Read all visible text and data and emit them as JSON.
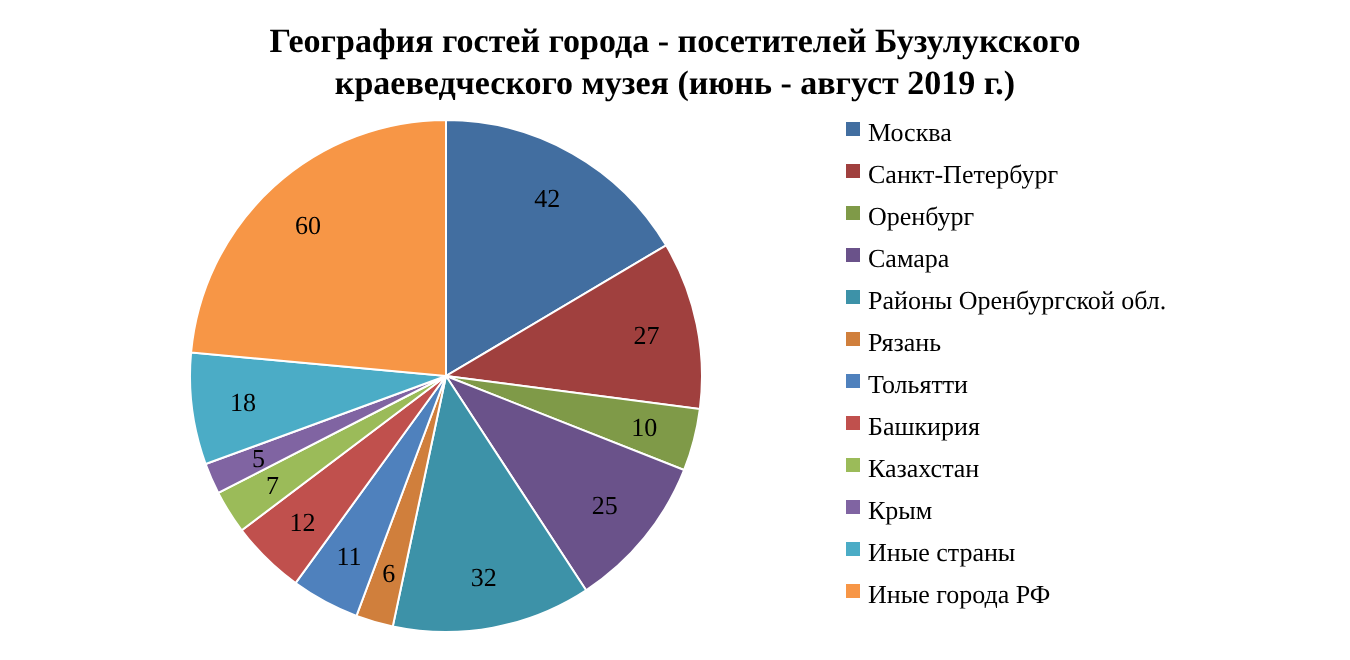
{
  "chart_data": {
    "type": "pie",
    "title": "География гостей города - посетителей Бузулукского краеведческого музея (июнь - август 2019 г.)",
    "categories": [
      "Москва",
      "Санкт-Петербург",
      "Оренбург",
      "Самара",
      "Районы Оренбургской обл.",
      "Рязань",
      "Тольятти",
      "Башкирия",
      "Казахстан",
      "Крым",
      "Иные страны",
      "Иные города РФ"
    ],
    "values": [
      42,
      27,
      10,
      25,
      32,
      6,
      11,
      12,
      7,
      5,
      18,
      60
    ],
    "colors": [
      "#426ea0",
      "#a0403e",
      "#7f9a48",
      "#6a528a",
      "#3d92a8",
      "#d07f3c",
      "#4f81bd",
      "#c0504d",
      "#9bbb59",
      "#8064a2",
      "#4bacc6",
      "#f79646"
    ],
    "data_labels": true,
    "legend": "right"
  }
}
